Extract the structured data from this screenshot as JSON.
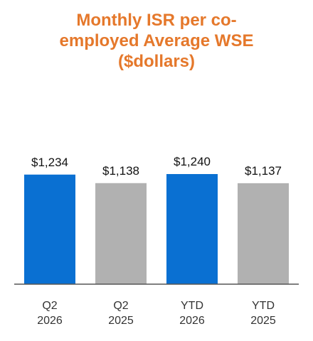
{
  "chart_data": {
    "type": "bar",
    "title": "Monthly ISR per co-employed Average WSE ($dollars)",
    "categories": [
      "Q2 2026",
      "Q2 2025",
      "YTD 2026",
      "YTD 2025"
    ],
    "values": [
      1234,
      1138,
      1240,
      1137
    ],
    "value_labels": [
      "$1,234",
      "$1,138",
      "$1,240",
      "$1,137"
    ],
    "colors": [
      "#0a70d2",
      "#b1b1b1",
      "#0a70d2",
      "#b1b1b1"
    ],
    "ylim": [
      0,
      2400
    ]
  }
}
